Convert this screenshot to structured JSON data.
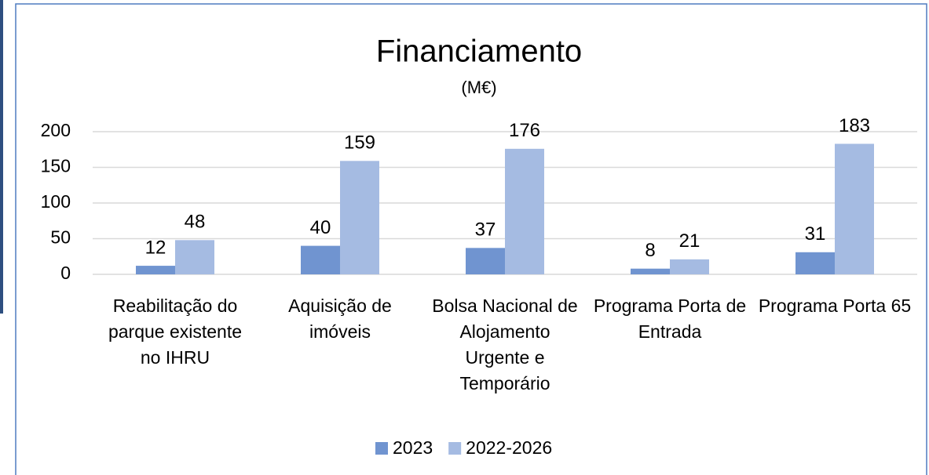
{
  "chart_data": {
    "type": "bar",
    "title": "Financiamento",
    "subtitle": "(M€)",
    "categories": [
      "Reabilitação do parque existente no IHRU",
      "Aquisição de imóveis",
      "Bolsa Nacional de Alojamento Urgente e Temporário",
      "Programa Porta de Entrada",
      "Programa Porta 65"
    ],
    "series": [
      {
        "name": "2023",
        "color": "#7094d0",
        "values": [
          12,
          40,
          37,
          8,
          31
        ]
      },
      {
        "name": "2022-2026",
        "color": "#a5bbe2",
        "values": [
          48,
          159,
          176,
          21,
          183
        ]
      }
    ],
    "ylim": [
      0,
      200
    ],
    "yticks": [
      0,
      50,
      100,
      150,
      200
    ],
    "grid": true,
    "legend": "bottom"
  }
}
